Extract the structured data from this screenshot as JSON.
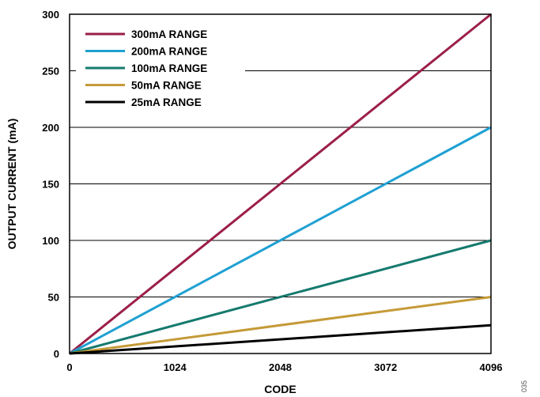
{
  "chart_data": {
    "type": "line",
    "xlabel": "CODE",
    "ylabel": "OUTPUT CURRENT (mA)",
    "xlim": [
      0,
      4096
    ],
    "ylim": [
      0,
      300
    ],
    "x_ticks": [
      0,
      1024,
      2048,
      3072,
      4096
    ],
    "y_ticks": [
      0,
      50,
      100,
      150,
      200,
      250,
      300
    ],
    "grid": "horizontal",
    "legend_position": "top-left",
    "series": [
      {
        "name": "300mA RANGE",
        "color": "#9b1f48",
        "x": [
          0,
          4096
        ],
        "y": [
          0,
          300
        ]
      },
      {
        "name": "200mA RANGE",
        "color": "#1fa0d2",
        "x": [
          0,
          4096
        ],
        "y": [
          0,
          200
        ]
      },
      {
        "name": "100mA RANGE",
        "color": "#157a6e",
        "x": [
          0,
          4096
        ],
        "y": [
          0,
          100
        ]
      },
      {
        "name": "50mA RANGE",
        "color": "#c59a38",
        "x": [
          0,
          4096
        ],
        "y": [
          0,
          50
        ]
      },
      {
        "name": "25mA RANGE",
        "color": "#000000",
        "x": [
          0,
          4096
        ],
        "y": [
          0,
          25
        ]
      }
    ]
  },
  "figure_id": "035"
}
